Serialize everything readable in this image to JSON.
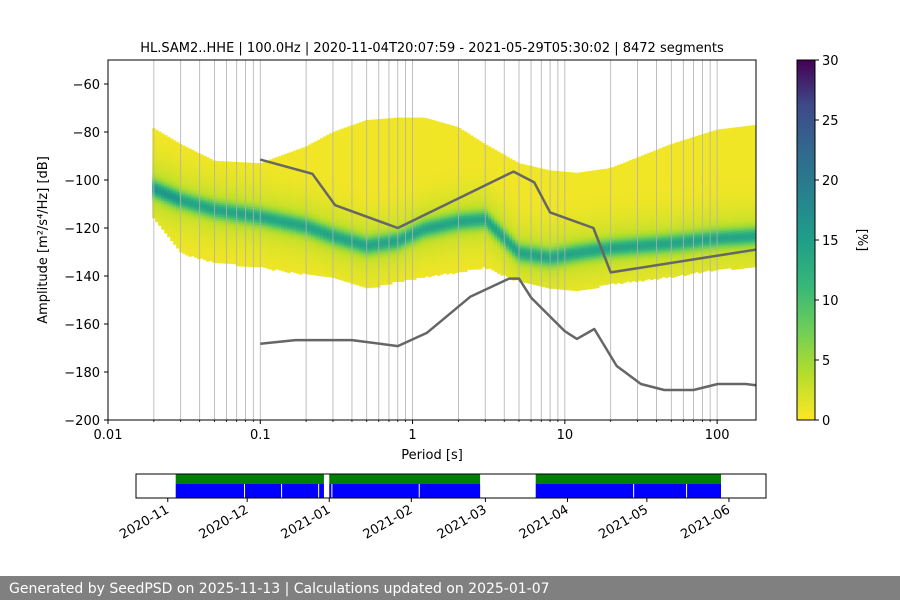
{
  "chart_data": [
    {
      "type": "heatmap",
      "title": "HL.SAM2..HHE | 100.0Hz | 2020-11-04T20:07:59 - 2021-05-29T05:30:02 | 8472 segments",
      "xlabel": "Period [s]",
      "ylabel": "Amplitude [m²/s⁴/Hz] [dB]",
      "xscale": "log",
      "xlim": [
        0.01,
        180
      ],
      "ylim": [
        -200,
        -50
      ],
      "grid": true,
      "xticks": [
        {
          "value": 0.01,
          "label": "0.01"
        },
        {
          "value": 0.1,
          "label": "0.1"
        },
        {
          "value": 1,
          "label": "1"
        },
        {
          "value": 10,
          "label": "10"
        },
        {
          "value": 100,
          "label": "100"
        }
      ],
      "yticks": [
        {
          "value": -60,
          "label": "−60"
        },
        {
          "value": -80,
          "label": "−80"
        },
        {
          "value": -100,
          "label": "−100"
        },
        {
          "value": -120,
          "label": "−120"
        },
        {
          "value": -140,
          "label": "−140"
        },
        {
          "value": -160,
          "label": "−160"
        },
        {
          "value": -180,
          "label": "−180"
        },
        {
          "value": -200,
          "label": "−200"
        }
      ],
      "colorbar": {
        "label": "[%]",
        "min": 0,
        "max": 30,
        "ticks": [
          "0",
          "5",
          "10",
          "15",
          "20",
          "25",
          "30"
        ],
        "colormap": "viridis"
      },
      "density_band": {
        "period": [
          0.0195,
          0.03,
          0.05,
          0.1,
          0.2,
          0.3,
          0.5,
          0.8,
          1.2,
          2,
          3,
          5,
          8,
          12,
          20,
          50,
          100,
          180
        ],
        "mode_db": [
          -103,
          -108,
          -112,
          -115,
          -119,
          -123,
          -127,
          -125,
          -120,
          -117,
          -116,
          -130,
          -132,
          -130,
          -128,
          -126,
          -124,
          -123
        ],
        "lower_db": [
          -115,
          -130,
          -134,
          -136,
          -139,
          -140,
          -145,
          -142,
          -140,
          -138,
          -136,
          -142,
          -145,
          -146,
          -143,
          -140,
          -137,
          -136
        ],
        "upper_db": [
          -78,
          -85,
          -92,
          -93,
          -86,
          -80,
          -75,
          -74,
          -74,
          -78,
          -85,
          -93,
          -96,
          -97,
          -95,
          -85,
          -79,
          -77
        ]
      },
      "series": [
        {
          "name": "",
          "color": "#666666",
          "x": [
            0.1,
            0.22,
            0.31,
            0.8,
            4.6,
            6.3,
            8,
            15.4,
            20,
            180
          ],
          "y": [
            -91.5,
            -97.4,
            -110.5,
            -120,
            -96.5,
            -101,
            -113.5,
            -120,
            -138.5,
            -129
          ]
        },
        {
          "name": "",
          "color": "#666666",
          "x": [
            0.1,
            0.17,
            0.4,
            0.8,
            1.24,
            2.4,
            4.3,
            5,
            6,
            10,
            12,
            15.6,
            21.9,
            31.6,
            45,
            70,
            101,
            154,
            180
          ],
          "y": [
            -168.2,
            -166.7,
            -166.7,
            -169.2,
            -163.7,
            -148.6,
            -141.1,
            -141.1,
            -149.0,
            -163.0,
            -166.2,
            -162.1,
            -177.5,
            -185.0,
            -187.5,
            -187.5,
            -185.0,
            -185.0,
            -185.5
          ]
        }
      ]
    },
    {
      "type": "timeline",
      "xticks": [
        "2020-11",
        "2020-12",
        "2021-01",
        "2021-02",
        "2021-03",
        "2021-04",
        "2021-05",
        "2021-06"
      ],
      "xlim": [
        "2020-10-20",
        "2021-06-15"
      ],
      "coverage_color": "#008000",
      "data_color": "#0000ff",
      "intervals": [
        {
          "start": "2020-11-04",
          "end": "2020-12-30"
        },
        {
          "start": "2021-01-01",
          "end": "2021-02-27"
        },
        {
          "start": "2021-03-20",
          "end": "2021-05-29"
        }
      ],
      "gaps": [
        "2020-11-30",
        "2020-12-14",
        "2020-12-28",
        "2021-01-02",
        "2021-02-04",
        "2021-04-26",
        "2021-05-16"
      ]
    }
  ],
  "footer": {
    "text": "Generated by SeedPSD on 2025-11-13 | Calculations updated on 2025-01-07"
  }
}
